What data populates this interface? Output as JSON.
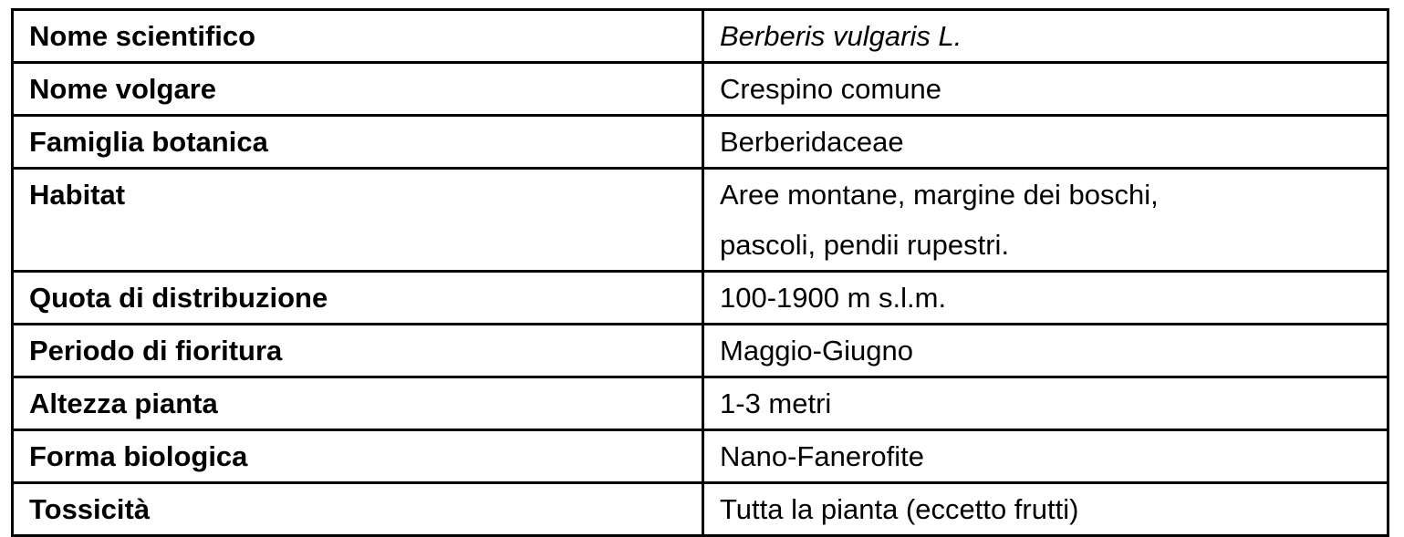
{
  "rows": [
    {
      "label": "Nome scientifico",
      "value": "Berberis vulgaris L.",
      "italic": true
    },
    {
      "label": "Nome volgare",
      "value": "Crespino comune"
    },
    {
      "label": "Famiglia botanica",
      "value": "Berberidaceae"
    },
    {
      "label": "Habitat",
      "value_lines": [
        "Aree montane, margine dei boschi,",
        "pascoli, pendii rupestri."
      ]
    },
    {
      "label": "Quota di distribuzione",
      "value": "100-1900 m s.l.m."
    },
    {
      "label": "Periodo di fioritura",
      "value": "Maggio-Giugno"
    },
    {
      "label": "Altezza pianta",
      "value": "1-3 metri"
    },
    {
      "label": "Forma biologica",
      "value": "Nano-Fanerofite"
    },
    {
      "label": "Tossicità",
      "value": "Tutta la pianta (eccetto frutti)"
    }
  ]
}
